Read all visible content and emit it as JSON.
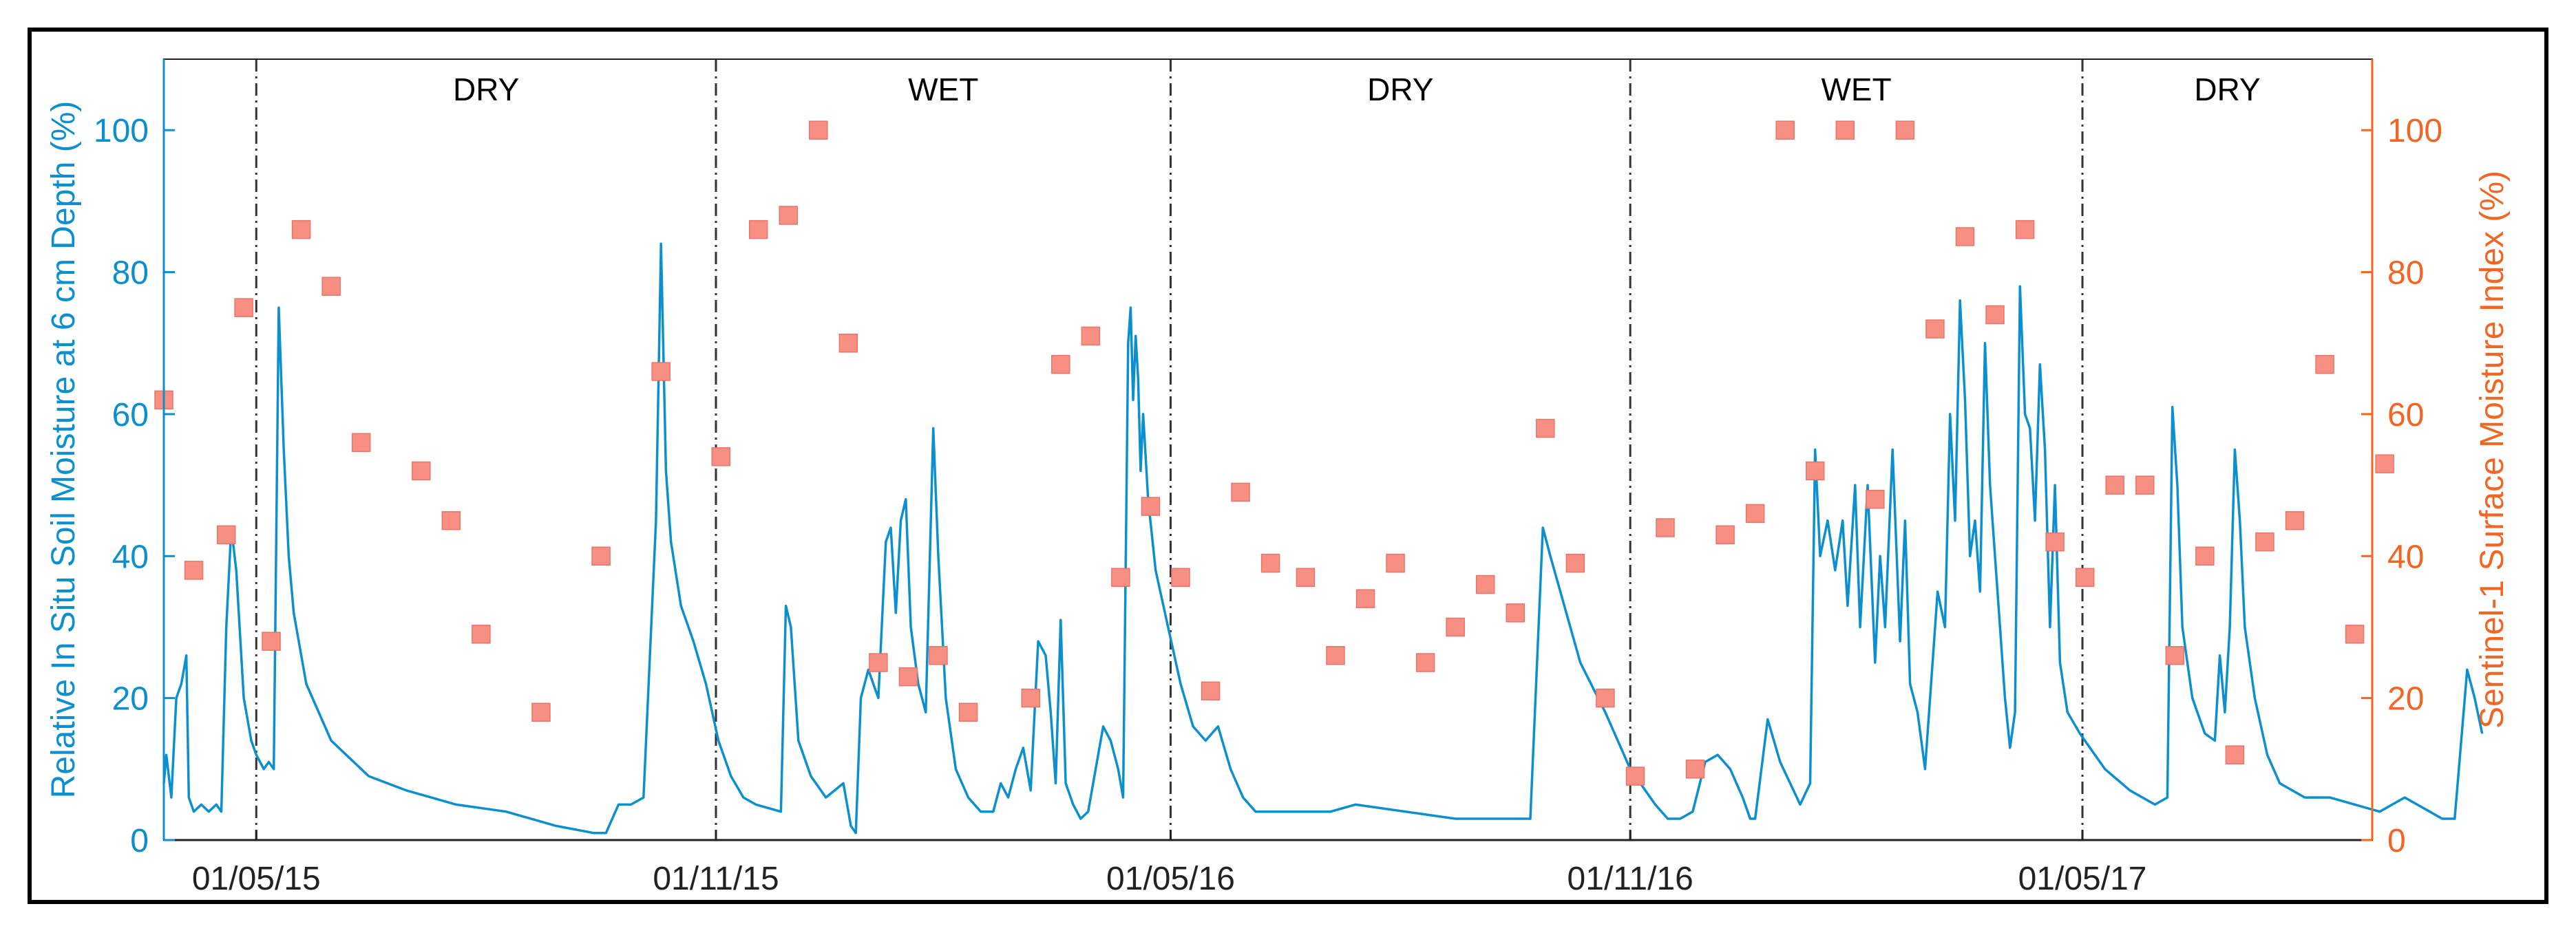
{
  "chart_data": {
    "type": "line+scatter",
    "x_axis": {
      "ticks": [
        "01/05/15",
        "01/11/15",
        "01/05/16",
        "01/11/16",
        "01/05/17"
      ],
      "tick_days": [
        0,
        184,
        366,
        550,
        731
      ],
      "range_days": [
        -37,
        847
      ]
    },
    "y_left": {
      "label": "Relative In Situ Soil Moisture at 6 cm Depth (%)",
      "range": [
        0,
        110
      ],
      "ticks": [
        0,
        20,
        40,
        60,
        80,
        100
      ],
      "color": "#0c8fcf"
    },
    "y_right": {
      "label": "Sentinel-1 Surface Moisture Index (%)",
      "range": [
        0,
        110
      ],
      "ticks": [
        0,
        20,
        40,
        60,
        80,
        100
      ],
      "color": "#f26522"
    },
    "season_boundaries_days": [
      0,
      184,
      366,
      550,
      731
    ],
    "seasons": [
      {
        "label": "DRY",
        "start_day": 0,
        "end_day": 184
      },
      {
        "label": "WET",
        "start_day": 184,
        "end_day": 366
      },
      {
        "label": "DRY",
        "start_day": 366,
        "end_day": 550
      },
      {
        "label": "WET",
        "start_day": 550,
        "end_day": 731
      },
      {
        "label": "DRY",
        "start_day": 731,
        "end_day": 847
      }
    ],
    "series": [
      {
        "name": "In situ soil moisture (6 cm)",
        "style": "line",
        "color": "#0c8fcf",
        "axis": "left",
        "points": [
          [
            -37,
            8
          ],
          [
            -36,
            12
          ],
          [
            -34,
            6
          ],
          [
            -32,
            20
          ],
          [
            -30,
            22
          ],
          [
            -28,
            26
          ],
          [
            -27,
            6
          ],
          [
            -25,
            4
          ],
          [
            -22,
            5
          ],
          [
            -19,
            4
          ],
          [
            -16,
            5
          ],
          [
            -14,
            4
          ],
          [
            -12,
            30
          ],
          [
            -10,
            44
          ],
          [
            -8,
            38
          ],
          [
            -5,
            20
          ],
          [
            -2,
            14
          ],
          [
            0,
            12
          ],
          [
            3,
            10
          ],
          [
            5,
            11
          ],
          [
            7,
            10
          ],
          [
            9,
            75
          ],
          [
            11,
            55
          ],
          [
            13,
            40
          ],
          [
            15,
            32
          ],
          [
            20,
            22
          ],
          [
            30,
            14
          ],
          [
            45,
            9
          ],
          [
            60,
            7
          ],
          [
            80,
            5
          ],
          [
            100,
            4
          ],
          [
            120,
            2
          ],
          [
            135,
            1
          ],
          [
            140,
            1
          ],
          [
            145,
            5
          ],
          [
            150,
            5
          ],
          [
            155,
            6
          ],
          [
            160,
            45
          ],
          [
            162,
            84
          ],
          [
            164,
            52
          ],
          [
            166,
            42
          ],
          [
            170,
            33
          ],
          [
            175,
            28
          ],
          [
            180,
            22
          ],
          [
            185,
            14
          ],
          [
            190,
            9
          ],
          [
            195,
            6
          ],
          [
            200,
            5
          ],
          [
            210,
            4
          ],
          [
            212,
            33
          ],
          [
            214,
            30
          ],
          [
            217,
            14
          ],
          [
            222,
            9
          ],
          [
            228,
            6
          ],
          [
            235,
            8
          ],
          [
            238,
            2
          ],
          [
            240,
            1
          ],
          [
            242,
            20
          ],
          [
            245,
            24
          ],
          [
            249,
            20
          ],
          [
            252,
            42
          ],
          [
            254,
            44
          ],
          [
            256,
            32
          ],
          [
            258,
            45
          ],
          [
            260,
            48
          ],
          [
            262,
            30
          ],
          [
            265,
            22
          ],
          [
            268,
            18
          ],
          [
            271,
            58
          ],
          [
            273,
            40
          ],
          [
            276,
            20
          ],
          [
            280,
            10
          ],
          [
            285,
            6
          ],
          [
            290,
            4
          ],
          [
            295,
            4
          ],
          [
            298,
            8
          ],
          [
            301,
            6
          ],
          [
            304,
            10
          ],
          [
            307,
            13
          ],
          [
            310,
            7
          ],
          [
            313,
            28
          ],
          [
            316,
            26
          ],
          [
            318,
            18
          ],
          [
            320,
            8
          ],
          [
            322,
            31
          ],
          [
            324,
            8
          ],
          [
            327,
            5
          ],
          [
            330,
            3
          ],
          [
            333,
            4
          ],
          [
            336,
            10
          ],
          [
            339,
            16
          ],
          [
            342,
            14
          ],
          [
            345,
            10
          ],
          [
            347,
            6
          ],
          [
            349,
            70
          ],
          [
            350,
            75
          ],
          [
            351,
            62
          ],
          [
            352,
            71
          ],
          [
            353,
            65
          ],
          [
            354,
            52
          ],
          [
            355,
            60
          ],
          [
            357,
            48
          ],
          [
            360,
            38
          ],
          [
            365,
            30
          ],
          [
            370,
            22
          ],
          [
            375,
            16
          ],
          [
            380,
            14
          ],
          [
            385,
            16
          ],
          [
            390,
            10
          ],
          [
            395,
            6
          ],
          [
            400,
            4
          ],
          [
            410,
            4
          ],
          [
            430,
            4
          ],
          [
            440,
            5
          ],
          [
            460,
            4
          ],
          [
            480,
            3
          ],
          [
            500,
            3
          ],
          [
            510,
            3
          ],
          [
            515,
            44
          ],
          [
            518,
            40
          ],
          [
            522,
            35
          ],
          [
            530,
            25
          ],
          [
            540,
            18
          ],
          [
            550,
            10
          ],
          [
            560,
            5
          ],
          [
            565,
            3
          ],
          [
            570,
            3
          ],
          [
            575,
            4
          ],
          [
            580,
            11
          ],
          [
            585,
            12
          ],
          [
            590,
            10
          ],
          [
            595,
            6
          ],
          [
            598,
            3
          ],
          [
            600,
            3
          ],
          [
            605,
            17
          ],
          [
            610,
            11
          ],
          [
            618,
            5
          ],
          [
            622,
            8
          ],
          [
            624,
            55
          ],
          [
            626,
            40
          ],
          [
            629,
            45
          ],
          [
            632,
            38
          ],
          [
            635,
            45
          ],
          [
            637,
            33
          ],
          [
            640,
            50
          ],
          [
            642,
            30
          ],
          [
            645,
            50
          ],
          [
            648,
            25
          ],
          [
            650,
            40
          ],
          [
            652,
            30
          ],
          [
            655,
            55
          ],
          [
            658,
            28
          ],
          [
            660,
            45
          ],
          [
            662,
            22
          ],
          [
            665,
            18
          ],
          [
            668,
            10
          ],
          [
            670,
            20
          ],
          [
            673,
            35
          ],
          [
            676,
            30
          ],
          [
            678,
            60
          ],
          [
            680,
            45
          ],
          [
            682,
            76
          ],
          [
            684,
            62
          ],
          [
            686,
            40
          ],
          [
            688,
            45
          ],
          [
            690,
            35
          ],
          [
            692,
            70
          ],
          [
            694,
            50
          ],
          [
            696,
            40
          ],
          [
            698,
            30
          ],
          [
            700,
            20
          ],
          [
            702,
            13
          ],
          [
            704,
            18
          ],
          [
            706,
            78
          ],
          [
            708,
            60
          ],
          [
            710,
            58
          ],
          [
            712,
            45
          ],
          [
            714,
            67
          ],
          [
            716,
            55
          ],
          [
            718,
            30
          ],
          [
            720,
            50
          ],
          [
            722,
            25
          ],
          [
            725,
            18
          ],
          [
            730,
            15
          ],
          [
            740,
            10
          ],
          [
            750,
            7
          ],
          [
            760,
            5
          ],
          [
            765,
            6
          ],
          [
            767,
            61
          ],
          [
            769,
            50
          ],
          [
            771,
            30
          ],
          [
            775,
            20
          ],
          [
            780,
            15
          ],
          [
            784,
            14
          ],
          [
            786,
            26
          ],
          [
            788,
            18
          ],
          [
            790,
            30
          ],
          [
            792,
            55
          ],
          [
            794,
            45
          ],
          [
            796,
            30
          ],
          [
            800,
            20
          ],
          [
            805,
            12
          ],
          [
            810,
            8
          ],
          [
            820,
            6
          ],
          [
            830,
            6
          ],
          [
            840,
            5
          ],
          [
            850,
            4
          ],
          [
            860,
            6
          ],
          [
            865,
            5
          ],
          [
            870,
            4
          ],
          [
            875,
            3
          ],
          [
            880,
            3
          ],
          [
            885,
            24
          ],
          [
            888,
            20
          ],
          [
            891,
            15
          ]
        ]
      },
      {
        "name": "Sentinel-1 surface moisture index",
        "style": "scatter",
        "color": "#f79083",
        "axis": "right",
        "points": [
          [
            -37,
            62
          ],
          [
            -25,
            38
          ],
          [
            -12,
            43
          ],
          [
            -5,
            75
          ],
          [
            6,
            28
          ],
          [
            18,
            86
          ],
          [
            30,
            78
          ],
          [
            42,
            56
          ],
          [
            66,
            52
          ],
          [
            78,
            45
          ],
          [
            90,
            29
          ],
          [
            114,
            18
          ],
          [
            138,
            40
          ],
          [
            162,
            66
          ],
          [
            186,
            54
          ],
          [
            201,
            86
          ],
          [
            213,
            88
          ],
          [
            225,
            100
          ],
          [
            237,
            70
          ],
          [
            249,
            25
          ],
          [
            261,
            23
          ],
          [
            273,
            26
          ],
          [
            285,
            18
          ],
          [
            310,
            20
          ],
          [
            322,
            67
          ],
          [
            334,
            71
          ],
          [
            346,
            37
          ],
          [
            358,
            47
          ],
          [
            370,
            37
          ],
          [
            382,
            21
          ],
          [
            394,
            49
          ],
          [
            406,
            39
          ],
          [
            420,
            37
          ],
          [
            432,
            26
          ],
          [
            444,
            34
          ],
          [
            456,
            39
          ],
          [
            468,
            25
          ],
          [
            480,
            30
          ],
          [
            492,
            36
          ],
          [
            504,
            32
          ],
          [
            516,
            58
          ],
          [
            528,
            39
          ],
          [
            540,
            20
          ],
          [
            552,
            9
          ],
          [
            564,
            44
          ],
          [
            576,
            10
          ],
          [
            588,
            43
          ],
          [
            600,
            46
          ],
          [
            612,
            100
          ],
          [
            624,
            52
          ],
          [
            636,
            100
          ],
          [
            648,
            48
          ],
          [
            660,
            100
          ],
          [
            672,
            72
          ],
          [
            684,
            85
          ],
          [
            696,
            74
          ],
          [
            708,
            86
          ],
          [
            720,
            42
          ],
          [
            732,
            37
          ],
          [
            744,
            50
          ],
          [
            756,
            50
          ],
          [
            768,
            26
          ],
          [
            780,
            40
          ],
          [
            792,
            12
          ],
          [
            804,
            42
          ],
          [
            816,
            45
          ],
          [
            828,
            67
          ],
          [
            840,
            29
          ],
          [
            852,
            53
          ]
        ]
      }
    ]
  }
}
